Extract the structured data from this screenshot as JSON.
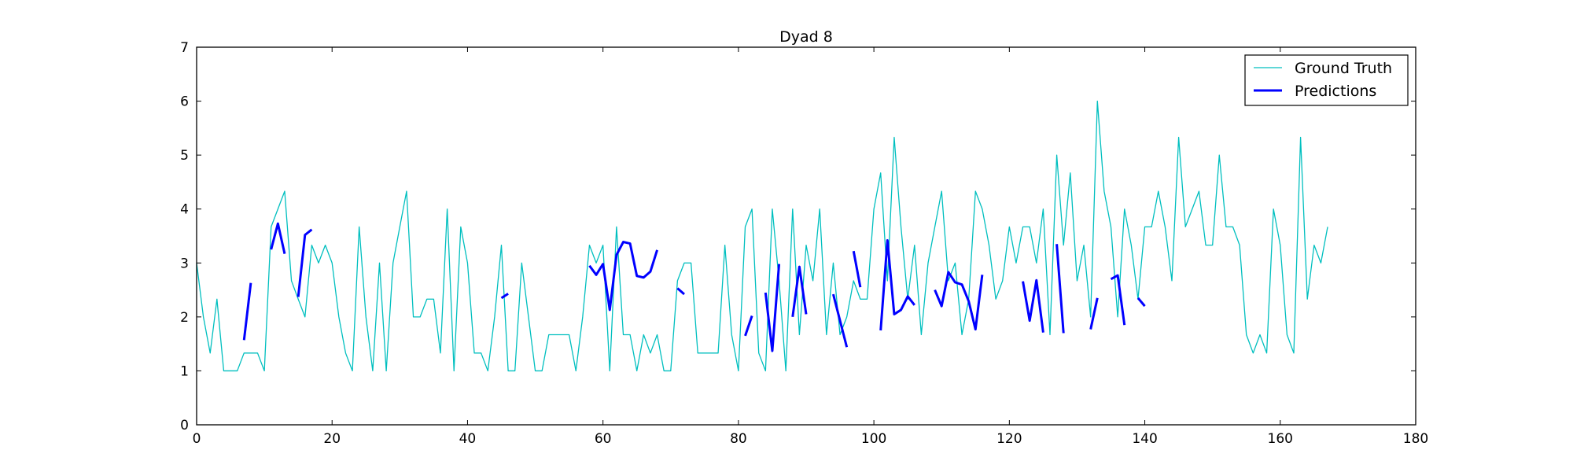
{
  "chart_data": {
    "type": "line",
    "title": "Dyad 8",
    "xlabel": "",
    "ylabel": "",
    "xlim": [
      0,
      180
    ],
    "ylim": [
      0,
      7
    ],
    "xticks": [
      0,
      20,
      40,
      60,
      80,
      100,
      120,
      140,
      160,
      180
    ],
    "yticks": [
      0,
      1,
      2,
      3,
      4,
      5,
      6,
      7
    ],
    "grid": false,
    "legend_position": "top-right",
    "series": [
      {
        "name": "Ground Truth",
        "color": "#00bfbf",
        "style": "thin",
        "values": [
          3.0,
          2.0,
          1.33,
          2.33,
          1.0,
          1.0,
          1.0,
          1.33,
          1.33,
          1.33,
          1.0,
          3.67,
          4.0,
          4.33,
          2.67,
          2.33,
          2.0,
          3.33,
          3.0,
          3.33,
          3.0,
          2.0,
          1.33,
          1.0,
          3.67,
          2.0,
          1.0,
          3.0,
          1.0,
          3.0,
          3.67,
          4.33,
          2.0,
          2.0,
          2.33,
          2.33,
          1.33,
          4.0,
          1.0,
          3.67,
          3.0,
          1.33,
          1.33,
          1.0,
          2.0,
          3.33,
          1.0,
          1.0,
          3.0,
          2.0,
          1.0,
          1.0,
          1.67,
          1.67,
          1.67,
          1.67,
          1.0,
          2.0,
          3.33,
          3.0,
          3.33,
          1.0,
          3.67,
          1.67,
          1.67,
          1.0,
          1.67,
          1.33,
          1.67,
          1.0,
          1.0,
          2.67,
          3.0,
          3.0,
          1.33,
          1.33,
          1.33,
          1.33,
          3.33,
          1.67,
          1.0,
          3.67,
          4.0,
          1.33,
          1.0,
          4.0,
          2.67,
          1.0,
          4.0,
          1.67,
          3.33,
          2.67,
          4.0,
          1.67,
          3.0,
          1.67,
          2.0,
          2.67,
          2.33,
          2.33,
          4.0,
          4.67,
          2.67,
          5.33,
          3.67,
          2.33,
          3.33,
          1.67,
          3.0,
          3.67,
          4.33,
          2.67,
          3.0,
          1.67,
          2.33,
          4.33,
          4.0,
          3.33,
          2.33,
          2.67,
          3.67,
          3.0,
          3.67,
          3.67,
          3.0,
          4.0,
          1.67,
          5.0,
          3.33,
          4.67,
          2.67,
          3.33,
          2.0,
          6.0,
          4.33,
          3.67,
          2.0,
          4.0,
          3.33,
          2.33,
          3.67,
          3.67,
          4.33,
          3.67,
          2.67,
          5.33,
          3.67,
          4.0,
          4.33,
          3.33,
          3.33,
          5.0,
          3.67,
          3.67,
          3.33,
          1.67,
          1.33,
          1.67,
          1.33,
          4.0,
          3.33,
          1.67,
          1.33,
          5.33,
          2.33,
          3.33,
          3.0,
          3.67
        ]
      },
      {
        "name": "Predictions",
        "color": "#0000ff",
        "style": "thick",
        "segments": [
          {
            "x": [
              7,
              8
            ],
            "y": [
              1.57,
              2.63
            ]
          },
          {
            "x": [
              11,
              12,
              13
            ],
            "y": [
              3.25,
              3.73,
              3.17
            ]
          },
          {
            "x": [
              15,
              16,
              17
            ],
            "y": [
              2.37,
              3.52,
              3.62
            ]
          },
          {
            "x": [
              45,
              46
            ],
            "y": [
              2.35,
              2.43
            ]
          },
          {
            "x": [
              58,
              59,
              60,
              61,
              62,
              63,
              64,
              65,
              66,
              67,
              68
            ],
            "y": [
              2.95,
              2.78,
              2.98,
              2.13,
              3.15,
              3.39,
              3.36,
              2.76,
              2.73,
              2.84,
              3.24
            ]
          },
          {
            "x": [
              71,
              72
            ],
            "y": [
              2.53,
              2.42
            ]
          },
          {
            "x": [
              81,
              82
            ],
            "y": [
              1.65,
              2.02
            ]
          },
          {
            "x": [
              84,
              85,
              86
            ],
            "y": [
              2.45,
              1.37,
              2.98
            ]
          },
          {
            "x": [
              88,
              89,
              90
            ],
            "y": [
              2.0,
              2.93,
              2.05
            ]
          },
          {
            "x": [
              94,
              95,
              96
            ],
            "y": [
              2.42,
              1.93,
              1.44
            ]
          },
          {
            "x": [
              97,
              98
            ],
            "y": [
              3.22,
              2.55
            ]
          },
          {
            "x": [
              101,
              102,
              103,
              104,
              105,
              106
            ],
            "y": [
              1.75,
              3.42,
              2.05,
              2.13,
              2.38,
              2.22
            ]
          },
          {
            "x": [
              109,
              110,
              111,
              112,
              113,
              114,
              115,
              116
            ],
            "y": [
              2.5,
              2.2,
              2.83,
              2.64,
              2.6,
              2.29,
              1.77,
              2.78
            ]
          },
          {
            "x": [
              122,
              123,
              124,
              125
            ],
            "y": [
              2.66,
              1.93,
              2.68,
              1.71
            ]
          },
          {
            "x": [
              127,
              128
            ],
            "y": [
              3.35,
              1.7
            ]
          },
          {
            "x": [
              132,
              133
            ],
            "y": [
              1.77,
              2.35
            ]
          },
          {
            "x": [
              135,
              136,
              137
            ],
            "y": [
              2.7,
              2.77,
              1.85
            ]
          },
          {
            "x": [
              139,
              140
            ],
            "y": [
              2.35,
              2.2
            ]
          }
        ]
      }
    ]
  }
}
